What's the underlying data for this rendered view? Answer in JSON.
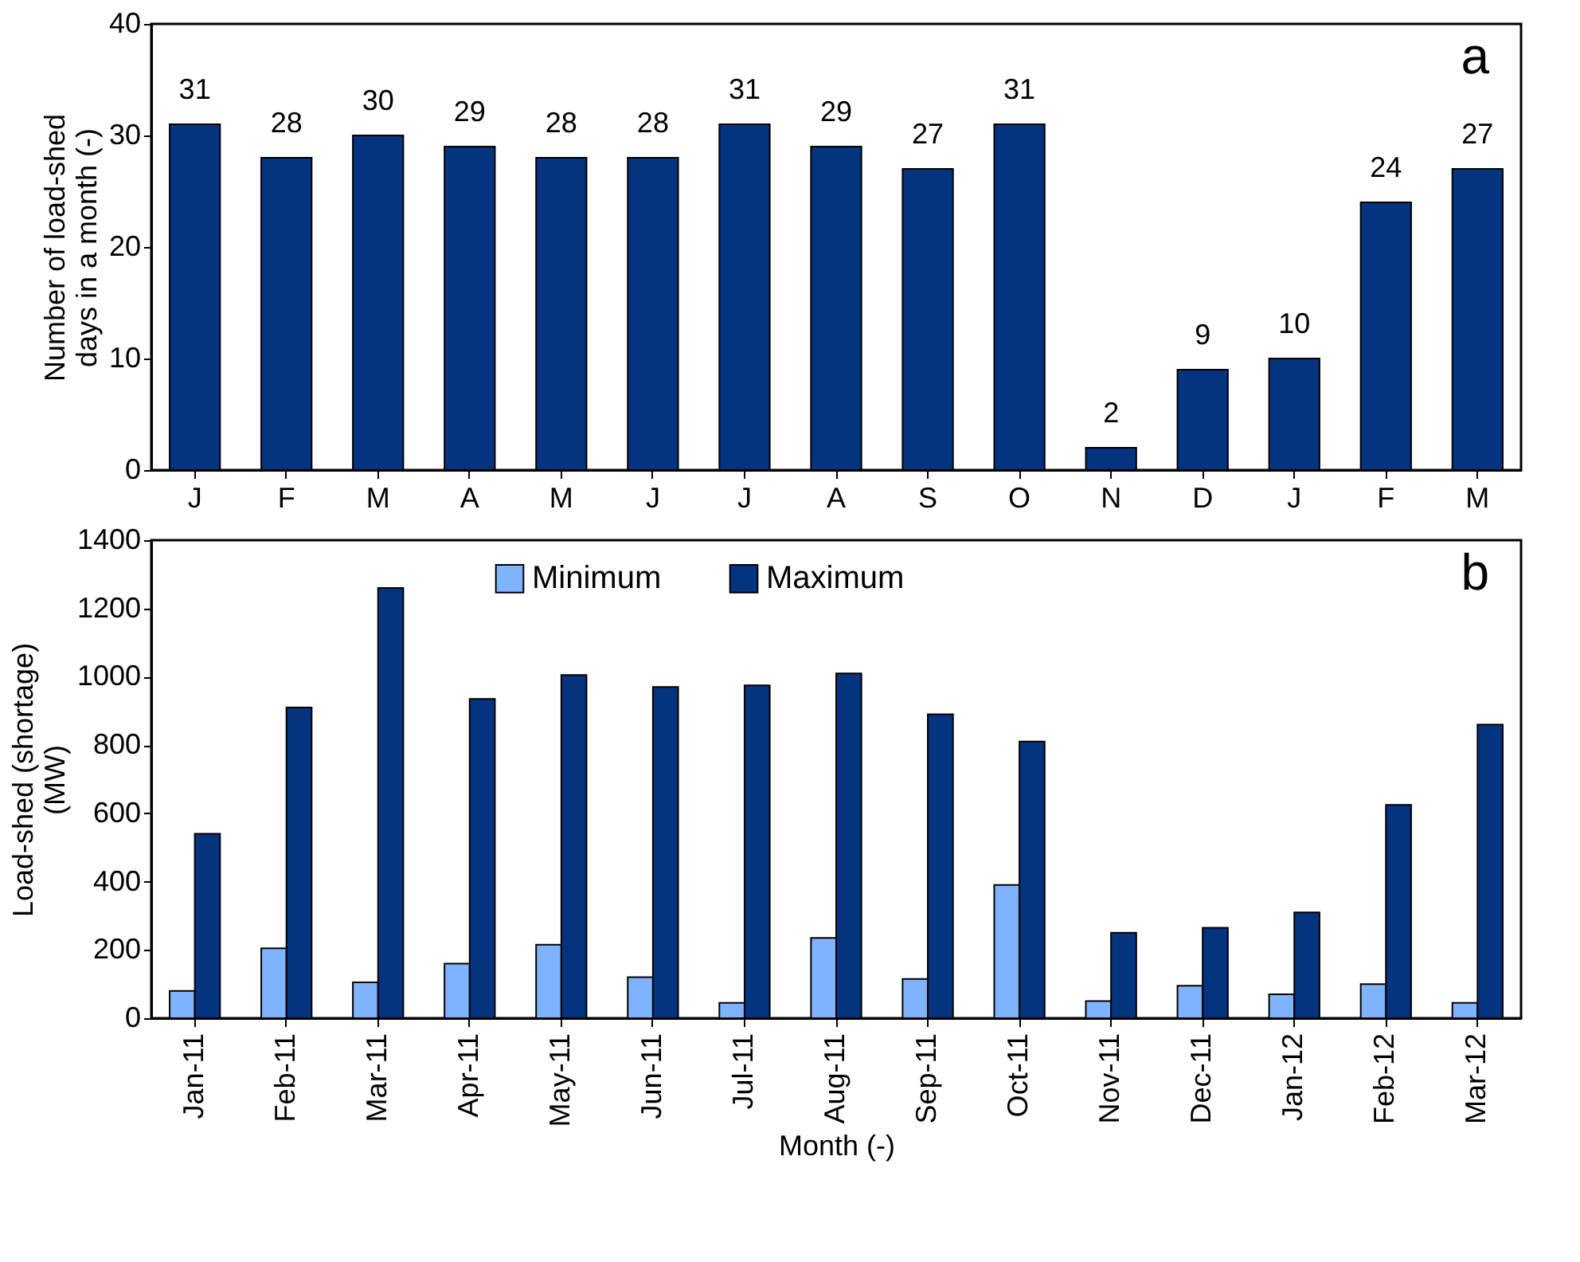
{
  "chart_data": [
    {
      "type": "bar",
      "categories": [
        "J",
        "F",
        "M",
        "A",
        "M",
        "J",
        "J",
        "A",
        "S",
        "O",
        "N",
        "D",
        "J",
        "F",
        "M"
      ],
      "values": [
        31,
        28,
        30,
        29,
        28,
        28,
        31,
        29,
        27,
        31,
        2,
        9,
        10,
        24,
        27
      ],
      "color": "#043380",
      "ylabel": "Number of load-shed\ndays in a month (-)",
      "ylim": [
        0,
        40
      ],
      "yticks": [
        0,
        10,
        20,
        30,
        40
      ],
      "data_labels": true,
      "grid": false,
      "legend": false,
      "annotations": [
        "a"
      ]
    },
    {
      "type": "bar",
      "categories": [
        "Jan-11",
        "Feb-11",
        "Mar-11",
        "Apr-11",
        "May-11",
        "Jun-11",
        "Jul-11",
        "Aug-11",
        "Sep-11",
        "Oct-11",
        "Nov-11",
        "Dec-11",
        "Jan-12",
        "Feb-12",
        "Mar-12"
      ],
      "series": [
        {
          "name": "Minimum",
          "color": "#80b3ff",
          "values": [
            80,
            205,
            105,
            160,
            215,
            120,
            45,
            235,
            115,
            390,
            50,
            95,
            70,
            100,
            45
          ]
        },
        {
          "name": "Maximum",
          "color": "#043380",
          "values": [
            540,
            910,
            1260,
            935,
            1005,
            970,
            975,
            1010,
            890,
            810,
            250,
            265,
            310,
            625,
            860
          ]
        }
      ],
      "xlabel": "Month (-)",
      "ylabel": "Load-shed (shortage)\n(MW)",
      "ylim": [
        0,
        1400
      ],
      "yticks": [
        0,
        200,
        400,
        600,
        800,
        1000,
        1200,
        1400
      ],
      "grid": false,
      "legend": "top",
      "annotations": [
        "b"
      ]
    }
  ]
}
